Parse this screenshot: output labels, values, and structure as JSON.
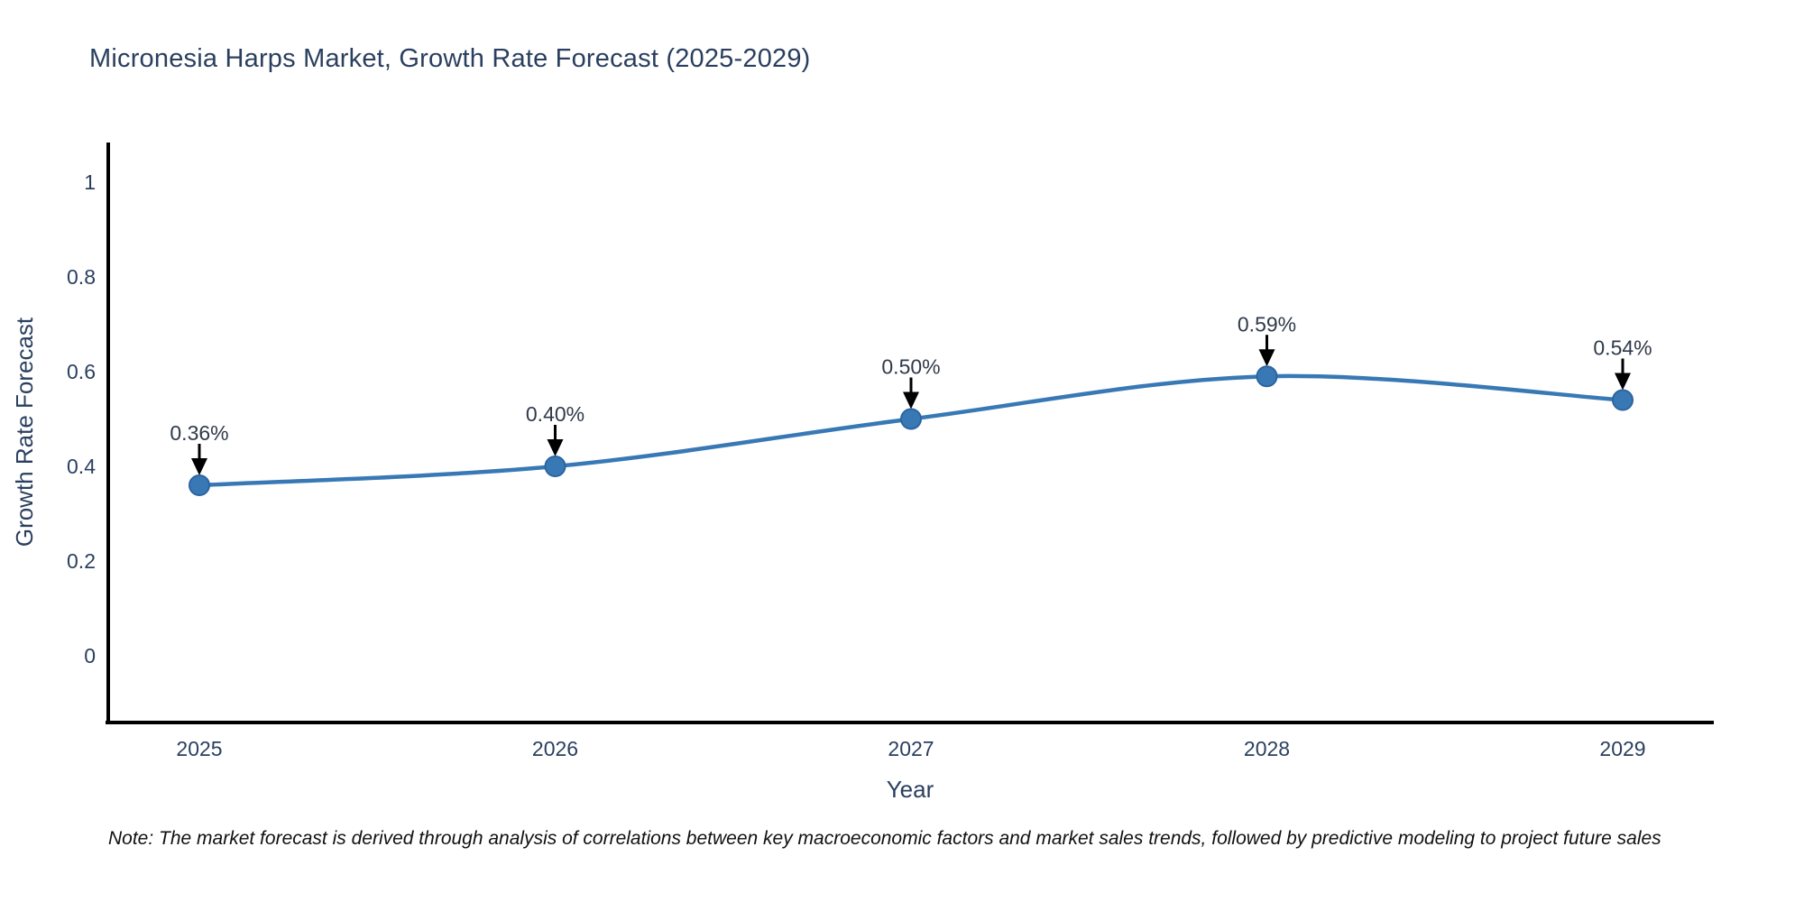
{
  "title": {
    "text": "Micronesia Harps Market, Growth Rate Forecast (2025-2029)",
    "color": "#2a3f5f"
  },
  "note": {
    "text": "Note: The market forecast is derived through analysis of correlations between key macroeconomic factors and market sales trends, followed by predictive modeling to project future sales"
  },
  "chart_data": {
    "type": "line",
    "title": "Micronesia Harps Market, Growth Rate Forecast (2025-2029)",
    "xlabel": "Year",
    "ylabel": "Growth Rate Forecast",
    "x": [
      2025,
      2026,
      2027,
      2028,
      2029
    ],
    "series": [
      {
        "name": "Growth Rate Forecast",
        "values": [
          0.36,
          0.4,
          0.5,
          0.59,
          0.54
        ]
      }
    ],
    "point_labels": [
      "0.36%",
      "0.40%",
      "0.50%",
      "0.59%",
      "0.54%"
    ],
    "xtick_labels": [
      "2025",
      "2026",
      "2027",
      "2028",
      "2029"
    ],
    "yticks": [
      0,
      0.2,
      0.4,
      0.6,
      0.8,
      1
    ],
    "ytick_labels": [
      "0",
      "0.2",
      "0.4",
      "0.6",
      "0.8",
      "1"
    ],
    "ylim": [
      -0.14,
      1.22
    ],
    "line_shape": "spline",
    "grid": false,
    "legend_position": "none",
    "colors": {
      "line": "#3879b5",
      "marker_fill": "#3879b5",
      "marker_edge": "#2d64a0",
      "axis_line": "#000000",
      "tick_label": "#2a3f5f",
      "annotation_text": "#2f3a4a",
      "annotation_arrow": "#000000"
    }
  }
}
